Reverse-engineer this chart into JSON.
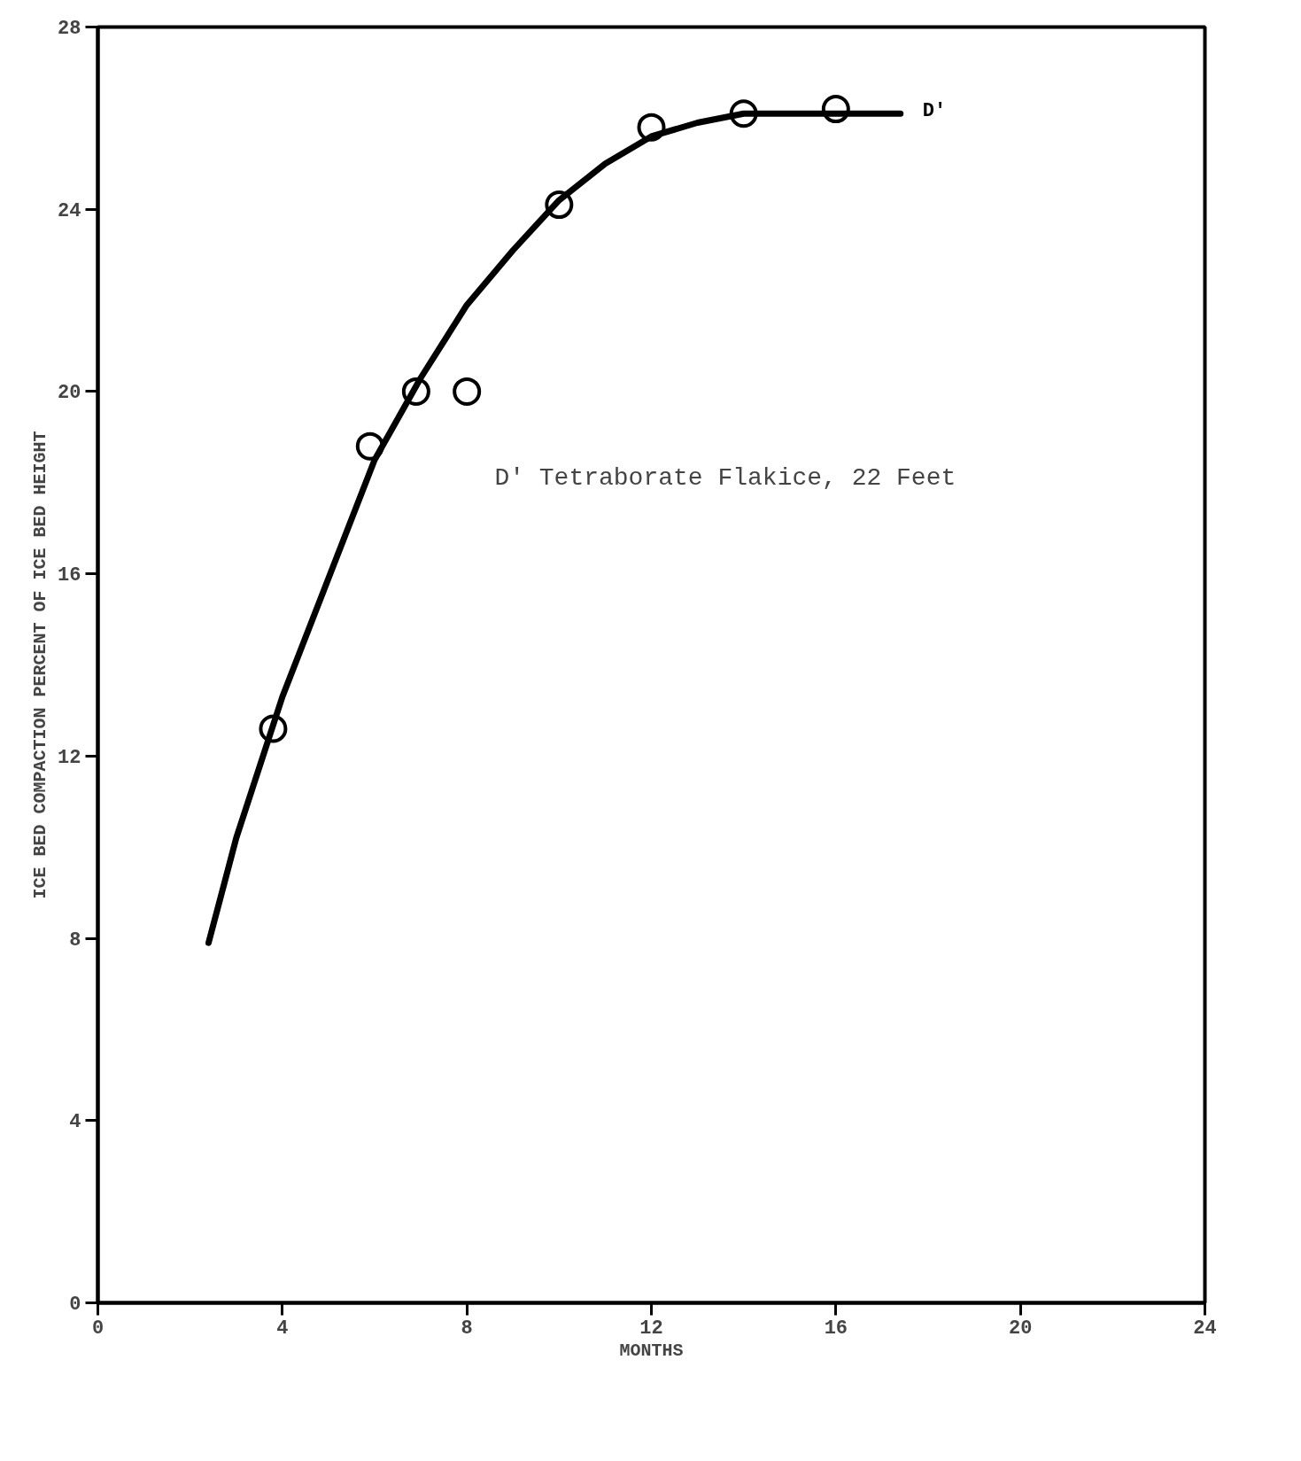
{
  "chart_data": {
    "type": "scatter",
    "xlabel": "MONTHS",
    "ylabel": "ICE BED COMPACTION PERCENT OF ICE BED HEIGHT",
    "xlim": [
      0,
      24
    ],
    "ylim": [
      0,
      28
    ],
    "xticks": [
      0,
      4,
      8,
      12,
      16,
      20,
      24
    ],
    "yticks": [
      0,
      4,
      8,
      12,
      16,
      20,
      24,
      28
    ],
    "grid": false,
    "marker": "circle",
    "annotations": [
      "D' Tetraborate Flakice, 22 Feet"
    ],
    "series": [
      {
        "color": "#000000",
        "x": [
          3.8,
          5.9,
          6.9,
          8,
          10,
          12,
          14,
          16
        ],
        "values": [
          12.6,
          18.8,
          20,
          20,
          24.1,
          25.8,
          26.1,
          26.2
        ]
      },
      {
        "type": "line",
        "name": "D'",
        "color": "#000000",
        "marker": "none",
        "x": [
          2.4,
          3,
          4,
          5,
          6,
          7,
          8,
          9,
          10,
          11,
          12,
          13,
          14,
          15,
          16,
          17.4
        ],
        "values": [
          7.9,
          10.2,
          13.3,
          15.9,
          18.5,
          20.3,
          21.9,
          23.1,
          24.2,
          25.0,
          25.6,
          25.9,
          26.1,
          26.1,
          26.1,
          26.1
        ]
      }
    ]
  }
}
